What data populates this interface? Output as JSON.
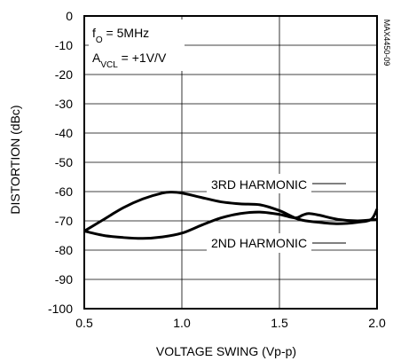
{
  "chart_data": {
    "type": "line",
    "title": "",
    "xlabel": "VOLTAGE SWING (Vp-p)",
    "ylabel": "DISTORTION (dBc)",
    "xlim": [
      0.5,
      2.0
    ],
    "ylim": [
      -100,
      0
    ],
    "x_ticks": [
      0.5,
      1.0,
      1.5,
      2.0
    ],
    "x_tick_labels": [
      "0.5",
      "1.0",
      "1.5",
      "2.0"
    ],
    "y_ticks": [
      0,
      -10,
      -20,
      -30,
      -40,
      -50,
      -60,
      -70,
      -80,
      -90,
      -100
    ],
    "y_tick_labels": [
      "0",
      "-10",
      "-20",
      "-30",
      "-40",
      "-50",
      "-60",
      "-70",
      "-80",
      "-90",
      "-100"
    ],
    "grid": true,
    "series": [
      {
        "name": "3RD HARMONIC",
        "x": [
          0.5,
          0.6,
          0.7,
          0.8,
          0.9,
          0.95,
          1.0,
          1.1,
          1.2,
          1.3,
          1.4,
          1.5,
          1.6,
          1.7,
          1.8,
          1.9,
          1.97,
          2.0
        ],
        "y": [
          -73.5,
          -69.5,
          -65.5,
          -62.5,
          -60.5,
          -60.2,
          -60.5,
          -62,
          -63.5,
          -64.2,
          -64.5,
          -66.5,
          -69.5,
          -70.5,
          -71,
          -70.5,
          -69.5,
          -66
        ]
      },
      {
        "name": "2ND HARMONIC",
        "x": [
          0.5,
          0.6,
          0.7,
          0.8,
          0.9,
          1.0,
          1.1,
          1.2,
          1.3,
          1.4,
          1.5,
          1.58,
          1.62,
          1.65,
          1.7,
          1.8,
          1.9,
          2.0
        ],
        "y": [
          -73.5,
          -75,
          -75.7,
          -76,
          -75.5,
          -74.2,
          -71.5,
          -69,
          -67.5,
          -67,
          -67.8,
          -69,
          -68,
          -67.5,
          -68,
          -69.5,
          -70,
          -69.5
        ]
      }
    ],
    "annotations": {
      "condition_1": "f0 = 5MHz",
      "condition_2": "AVCL = +1V/V",
      "label_3rd": "3RD HARMONIC",
      "label_2nd": "2ND HARMONIC",
      "figure_code": "MAX4450-09"
    }
  }
}
